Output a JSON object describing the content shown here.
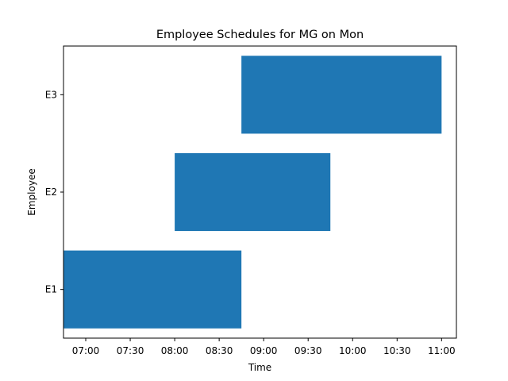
{
  "chart_data": {
    "type": "bar",
    "orientation": "horizontal",
    "title": "Employee Schedules for MG on Mon",
    "xlabel": "Time",
    "ylabel": "Employee",
    "categories": [
      "E1",
      "E2",
      "E3"
    ],
    "intervals": [
      {
        "category": "E1",
        "start": "06:45",
        "end": "08:45"
      },
      {
        "category": "E2",
        "start": "08:00",
        "end": "09:45"
      },
      {
        "category": "E3",
        "start": "08:45",
        "end": "11:00"
      }
    ],
    "x_ticks": [
      "07:00",
      "07:30",
      "08:00",
      "08:30",
      "09:00",
      "09:30",
      "10:00",
      "10:30",
      "11:00"
    ],
    "xlim": [
      "06:45",
      "11:10"
    ],
    "bar_color": "#1f77b4",
    "grid": false,
    "legend": "none"
  }
}
